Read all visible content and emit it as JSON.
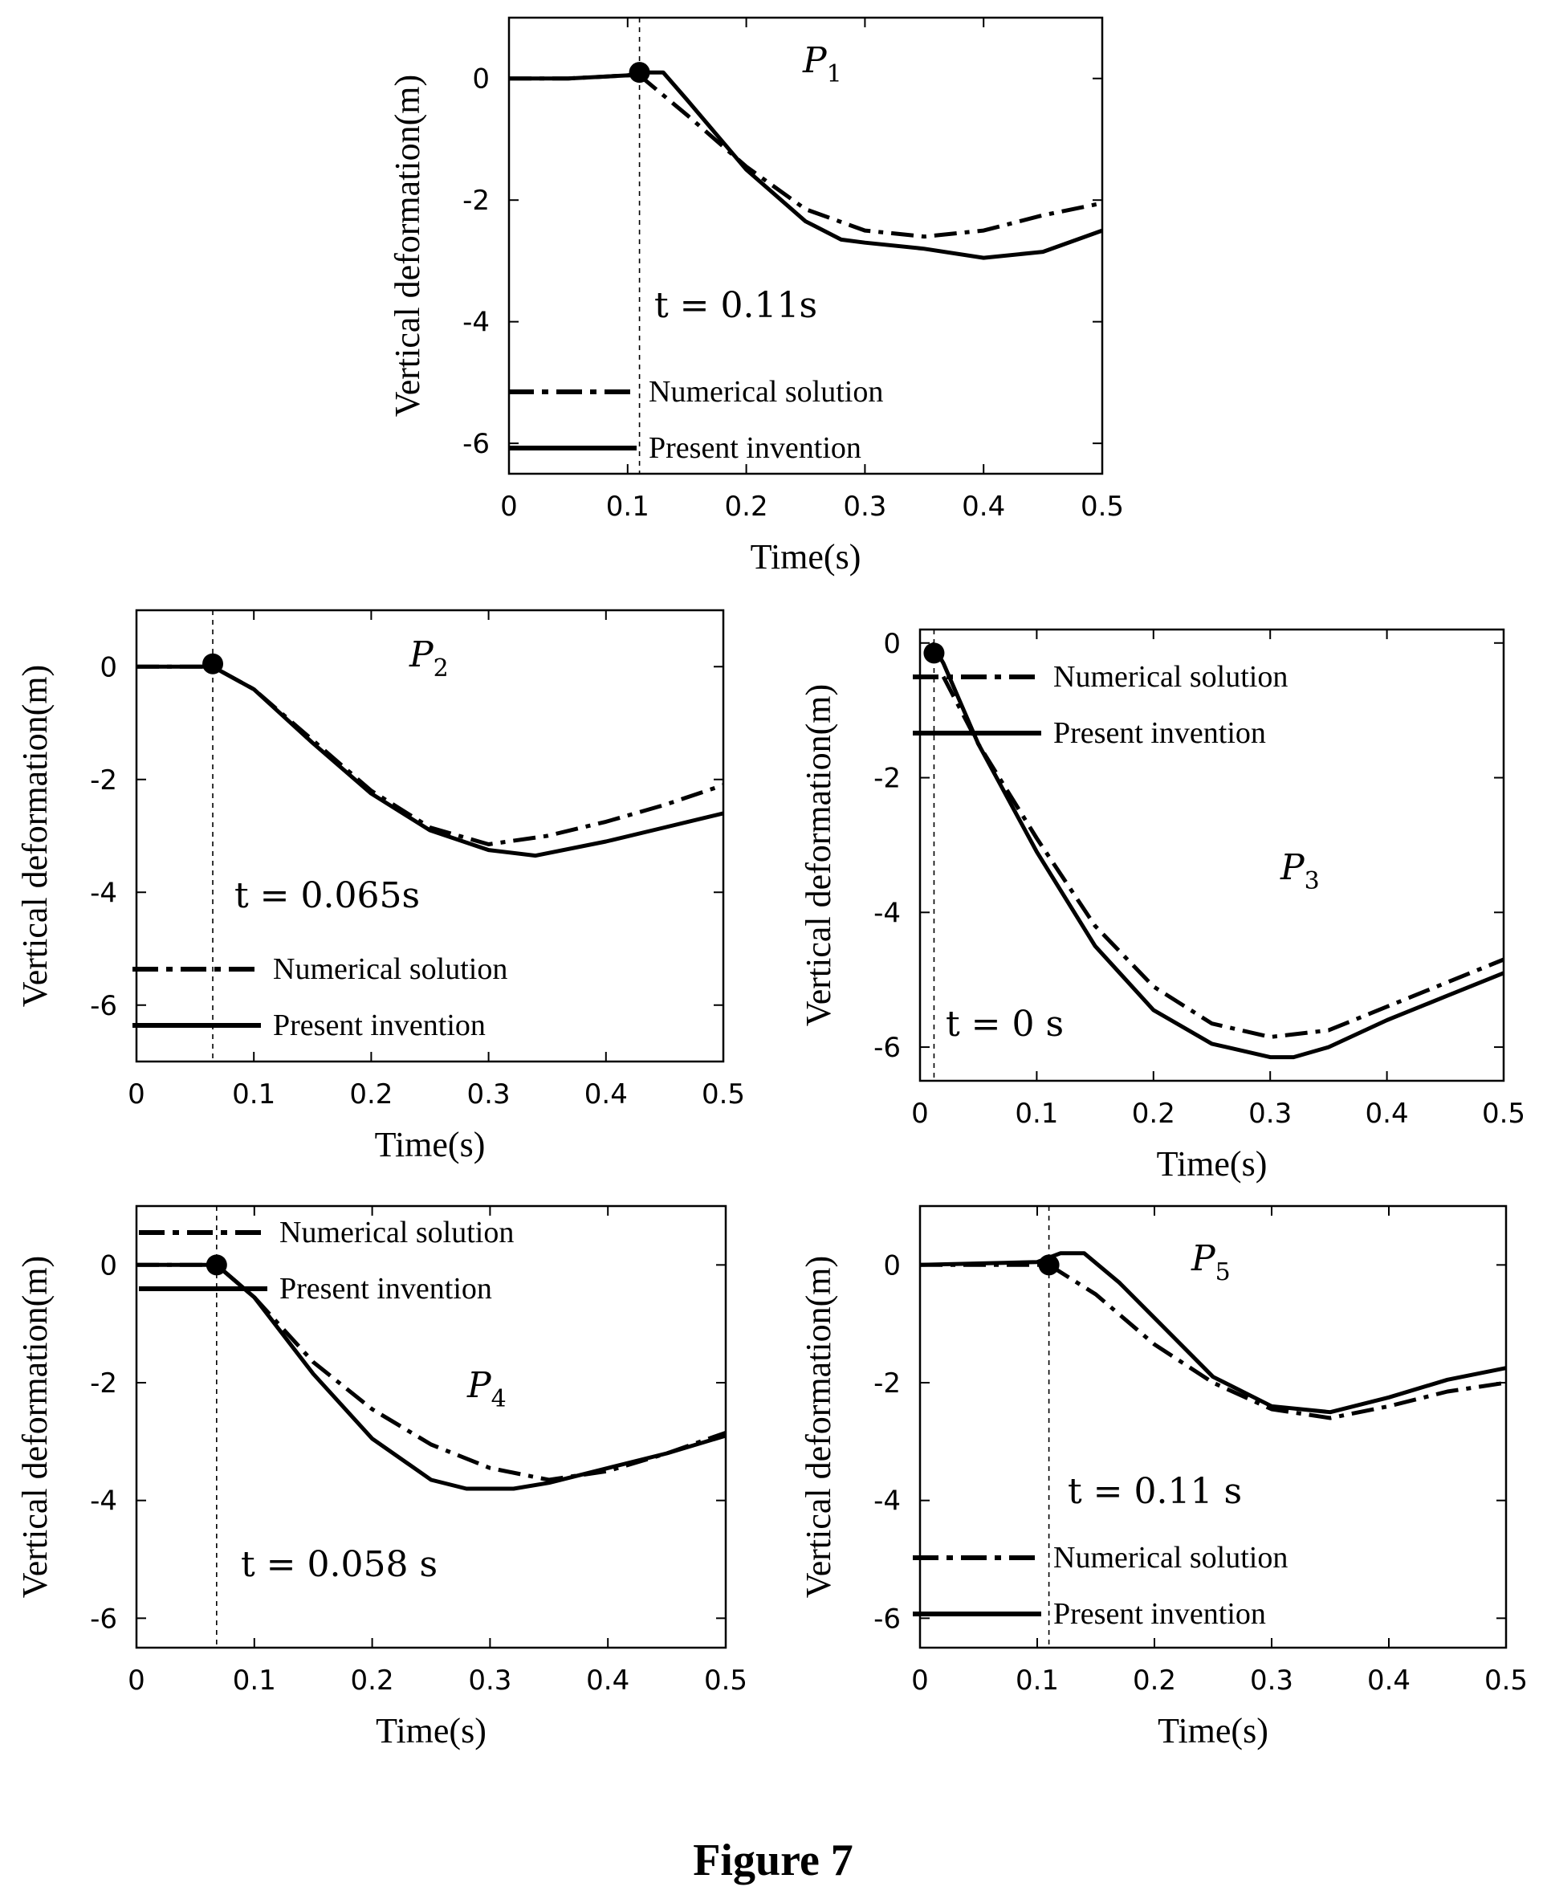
{
  "caption": "Figure 7",
  "legend_dash_color": "#000000",
  "chart_data": [
    {
      "type": "line",
      "panel_label": "P",
      "panel_sub": "1",
      "annotation": "t = 0.11s",
      "marker_time": 0.11,
      "marker_value": 0.1,
      "xlabel": "Time(s)",
      "ylabel": "Vertical deformation(m)",
      "xlim": [
        0,
        0.5
      ],
      "ylim": [
        -6.5,
        1
      ],
      "xticks": [
        "0",
        "0.1",
        "0.2",
        "0.3",
        "0.4",
        "0.5"
      ],
      "yticks": [
        "0",
        "-2",
        "-4",
        "-6"
      ],
      "legend_position": "bottom-right",
      "series": [
        {
          "name": "Numerical solution",
          "style": "dashdot",
          "x": [
            0,
            0.05,
            0.1,
            0.11,
            0.15,
            0.2,
            0.25,
            0.3,
            0.35,
            0.4,
            0.45,
            0.5
          ],
          "y": [
            0,
            0,
            0.05,
            0.05,
            -0.6,
            -1.45,
            -2.15,
            -2.5,
            -2.6,
            -2.5,
            -2.25,
            -2.05
          ]
        },
        {
          "name": "Present invention",
          "style": "solid",
          "x": [
            0,
            0.05,
            0.1,
            0.11,
            0.13,
            0.15,
            0.2,
            0.25,
            0.28,
            0.3,
            0.35,
            0.4,
            0.45,
            0.5
          ],
          "y": [
            0,
            0,
            0.05,
            0.1,
            0.1,
            -0.35,
            -1.5,
            -2.35,
            -2.65,
            -2.7,
            -2.8,
            -2.95,
            -2.85,
            -2.5
          ]
        }
      ]
    },
    {
      "type": "line",
      "panel_label": "P",
      "panel_sub": "2",
      "annotation": "t = 0.065s",
      "marker_time": 0.065,
      "marker_value": 0.05,
      "xlabel": "Time(s)",
      "ylabel": "Vertical deformation(m)",
      "xlim": [
        0,
        0.5
      ],
      "ylim": [
        -7,
        1
      ],
      "xticks": [
        "0",
        "0.1",
        "0.2",
        "0.3",
        "0.4",
        "0.5"
      ],
      "yticks": [
        "0",
        "-2",
        "-4",
        "-6"
      ],
      "legend_position": "bottom-right",
      "series": [
        {
          "name": "Numerical solution",
          "style": "dashdot",
          "x": [
            0,
            0.065,
            0.1,
            0.15,
            0.2,
            0.25,
            0.3,
            0.35,
            0.4,
            0.45,
            0.5
          ],
          "y": [
            0,
            0,
            -0.4,
            -1.3,
            -2.2,
            -2.85,
            -3.15,
            -3.0,
            -2.75,
            -2.45,
            -2.1
          ]
        },
        {
          "name": "Present invention",
          "style": "solid",
          "x": [
            0,
            0.065,
            0.1,
            0.15,
            0.2,
            0.25,
            0.3,
            0.34,
            0.4,
            0.45,
            0.5
          ],
          "y": [
            0,
            0,
            -0.4,
            -1.35,
            -2.25,
            -2.9,
            -3.25,
            -3.35,
            -3.1,
            -2.85,
            -2.6
          ]
        }
      ]
    },
    {
      "type": "line",
      "panel_label": "P",
      "panel_sub": "3",
      "annotation": "t = 0 s",
      "marker_time": 0.012,
      "marker_value": -0.15,
      "xlabel": "Time(s)",
      "ylabel": "Vertical deformation(m)",
      "xlim": [
        0,
        0.5
      ],
      "ylim": [
        -6.5,
        0.2
      ],
      "xticks": [
        "0",
        "0.1",
        "0.2",
        "0.3",
        "0.4",
        "0.5"
      ],
      "yticks": [
        "0",
        "-2",
        "-4",
        "-6"
      ],
      "legend_position": "top-right",
      "series": [
        {
          "name": "Numerical solution",
          "style": "dashdot",
          "x": [
            0.02,
            0.05,
            0.1,
            0.15,
            0.2,
            0.25,
            0.3,
            0.35,
            0.4,
            0.45,
            0.5
          ],
          "y": [
            -0.5,
            -1.5,
            -2.9,
            -4.2,
            -5.1,
            -5.65,
            -5.85,
            -5.75,
            -5.4,
            -5.05,
            -4.7
          ]
        },
        {
          "name": "Present invention",
          "style": "solid",
          "x": [
            0.01,
            0.02,
            0.05,
            0.1,
            0.15,
            0.2,
            0.25,
            0.3,
            0.32,
            0.35,
            0.4,
            0.45,
            0.5
          ],
          "y": [
            0,
            -0.3,
            -1.5,
            -3.1,
            -4.5,
            -5.45,
            -5.95,
            -6.15,
            -6.15,
            -6.0,
            -5.6,
            -5.25,
            -4.9
          ]
        }
      ]
    },
    {
      "type": "line",
      "panel_label": "P",
      "panel_sub": "4",
      "annotation": "t = 0.058 s",
      "marker_time": 0.068,
      "marker_value": 0.0,
      "xlabel": "Time(s)",
      "ylabel": "Vertical deformation(m)",
      "xlim": [
        0,
        0.5
      ],
      "ylim": [
        -6.5,
        1
      ],
      "xticks": [
        "0",
        "0.1",
        "0.2",
        "0.3",
        "0.4",
        "0.5"
      ],
      "yticks": [
        "0",
        "-2",
        "-4",
        "-6"
      ],
      "legend_position": "top-right",
      "series": [
        {
          "name": "Numerical solution",
          "style": "dashdot",
          "x": [
            0,
            0.068,
            0.1,
            0.15,
            0.2,
            0.25,
            0.3,
            0.35,
            0.4,
            0.45,
            0.5
          ],
          "y": [
            0,
            0,
            -0.55,
            -1.65,
            -2.45,
            -3.05,
            -3.45,
            -3.65,
            -3.5,
            -3.2,
            -2.85
          ]
        },
        {
          "name": "Present invention",
          "style": "solid",
          "x": [
            0,
            0.068,
            0.1,
            0.15,
            0.2,
            0.25,
            0.28,
            0.32,
            0.35,
            0.4,
            0.45,
            0.5
          ],
          "y": [
            0,
            0,
            -0.55,
            -1.85,
            -2.95,
            -3.65,
            -3.8,
            -3.8,
            -3.7,
            -3.45,
            -3.2,
            -2.9
          ]
        }
      ]
    },
    {
      "type": "line",
      "panel_label": "P",
      "panel_sub": "5",
      "annotation": "t = 0.11 s",
      "marker_time": 0.11,
      "marker_value": 0.0,
      "xlabel": "Time(s)",
      "ylabel": "Vertical deformation(m)",
      "xlim": [
        0,
        0.5
      ],
      "ylim": [
        -6.5,
        1
      ],
      "xticks": [
        "0",
        "0.1",
        "0.2",
        "0.3",
        "0.4",
        "0.5"
      ],
      "yticks": [
        "0",
        "-2",
        "-4",
        "-6"
      ],
      "legend_position": "bottom-right",
      "series": [
        {
          "name": "Numerical solution",
          "style": "dashdot",
          "x": [
            0,
            0.06,
            0.1,
            0.11,
            0.15,
            0.2,
            0.25,
            0.3,
            0.35,
            0.4,
            0.45,
            0.5
          ],
          "y": [
            0,
            0,
            0,
            0,
            -0.5,
            -1.35,
            -2.0,
            -2.45,
            -2.6,
            -2.4,
            -2.15,
            -2.0
          ]
        },
        {
          "name": "Present invention",
          "style": "solid",
          "x": [
            0,
            0.1,
            0.12,
            0.14,
            0.17,
            0.2,
            0.25,
            0.3,
            0.35,
            0.4,
            0.45,
            0.5
          ],
          "y": [
            0,
            0.05,
            0.2,
            0.2,
            -0.3,
            -0.9,
            -1.9,
            -2.4,
            -2.5,
            -2.25,
            -1.95,
            -1.75
          ]
        }
      ]
    }
  ]
}
